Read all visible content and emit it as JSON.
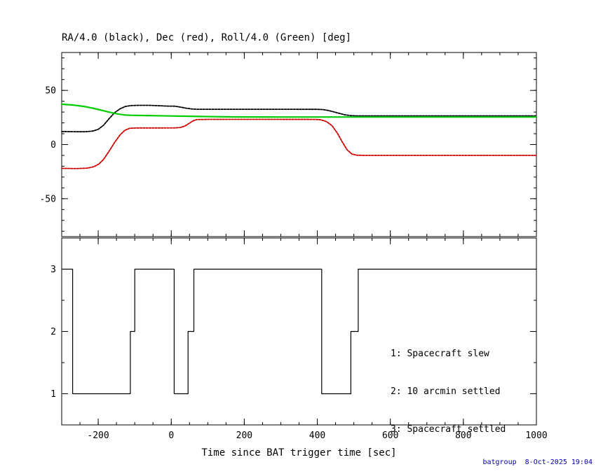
{
  "page": {
    "background": "#ffffff"
  },
  "footer": {
    "text": "batgroup  8-Oct-2025 19:04",
    "color": "#0000aa"
  },
  "chart_data": [
    {
      "type": "line",
      "title": "RA/4.0 (black), Dec (red), Roll/4.0 (Green) [deg]",
      "xlabel": "",
      "ylabel": "",
      "xlim": [
        -300,
        1000
      ],
      "ylim": [
        -85,
        85
      ],
      "xticks": [
        -200,
        0,
        200,
        400,
        600,
        800,
        1000
      ],
      "x_minor_step": 50,
      "yticks": [
        -50,
        0,
        50
      ],
      "y_minor_step": 10,
      "x_tick_labels": false,
      "grid": false,
      "series": [
        {
          "name": "RA-over-4-black",
          "color": "#000000",
          "width": 1.8,
          "style": "dotted",
          "points": [
            [
              -300,
              12
            ],
            [
              -260,
              11.8
            ],
            [
              -235,
              11.8
            ],
            [
              -215,
              12.5
            ],
            [
              -200,
              14
            ],
            [
              -185,
              18
            ],
            [
              -170,
              24
            ],
            [
              -155,
              29.5
            ],
            [
              -140,
              33
            ],
            [
              -125,
              35.2
            ],
            [
              -110,
              36
            ],
            [
              -90,
              36.2
            ],
            [
              -60,
              36.2
            ],
            [
              -30,
              35.8
            ],
            [
              -10,
              35.5
            ],
            [
              10,
              35.4
            ],
            [
              25,
              34.6
            ],
            [
              40,
              33.6
            ],
            [
              55,
              32.9
            ],
            [
              70,
              32.6
            ],
            [
              120,
              32.6
            ],
            [
              250,
              32.6
            ],
            [
              400,
              32.5
            ],
            [
              415,
              32.3
            ],
            [
              430,
              31.5
            ],
            [
              445,
              30.2
            ],
            [
              460,
              28.8
            ],
            [
              475,
              27.5
            ],
            [
              490,
              26.8
            ],
            [
              505,
              26.5
            ],
            [
              560,
              26.5
            ],
            [
              800,
              26.5
            ],
            [
              1000,
              26.5
            ]
          ]
        },
        {
          "name": "Dec-red",
          "color": "#cc0000",
          "width": 1.8,
          "style": "dotted",
          "points": [
            [
              -300,
              -22
            ],
            [
              -260,
              -22.2
            ],
            [
              -230,
              -21.8
            ],
            [
              -212,
              -20.5
            ],
            [
              -198,
              -18
            ],
            [
              -185,
              -13.5
            ],
            [
              -170,
              -6
            ],
            [
              -155,
              2
            ],
            [
              -140,
              9
            ],
            [
              -127,
              13.2
            ],
            [
              -114,
              15
            ],
            [
              -95,
              15.3
            ],
            [
              -60,
              15.3
            ],
            [
              -20,
              15.3
            ],
            [
              10,
              15.4
            ],
            [
              25,
              15.8
            ],
            [
              38,
              17.2
            ],
            [
              50,
              19.8
            ],
            [
              60,
              22
            ],
            [
              70,
              23.1
            ],
            [
              100,
              23.3
            ],
            [
              250,
              23.3
            ],
            [
              395,
              23.2
            ],
            [
              410,
              22.9
            ],
            [
              425,
              21.2
            ],
            [
              440,
              17.5
            ],
            [
              455,
              10.5
            ],
            [
              468,
              2.5
            ],
            [
              482,
              -5
            ],
            [
              495,
              -8.8
            ],
            [
              508,
              -9.8
            ],
            [
              530,
              -10
            ],
            [
              750,
              -10
            ],
            [
              1000,
              -10
            ]
          ]
        },
        {
          "name": "Roll-over-4-green",
          "color": "#00cc00",
          "width": 2.2,
          "style": "solid",
          "points": [
            [
              -300,
              37.2
            ],
            [
              -270,
              36.5
            ],
            [
              -240,
              35.2
            ],
            [
              -215,
              33.6
            ],
            [
              -195,
              32
            ],
            [
              -175,
              30.3
            ],
            [
              -158,
              29
            ],
            [
              -142,
              28
            ],
            [
              -126,
              27.3
            ],
            [
              -110,
              27
            ],
            [
              -80,
              26.8
            ],
            [
              -40,
              26.6
            ],
            [
              0,
              26.4
            ],
            [
              40,
              26.2
            ],
            [
              80,
              25.9
            ],
            [
              120,
              25.7
            ],
            [
              170,
              25.5
            ],
            [
              300,
              25.4
            ],
            [
              500,
              25.4
            ],
            [
              750,
              25.4
            ],
            [
              1000,
              25.4
            ]
          ]
        }
      ]
    },
    {
      "type": "line",
      "title": "",
      "xlabel": "Time since BAT trigger time [sec]",
      "ylabel": "",
      "xlim": [
        -300,
        1000
      ],
      "ylim": [
        0.5,
        3.5
      ],
      "xticks": [
        -200,
        0,
        200,
        400,
        600,
        800,
        1000
      ],
      "x_minor_step": 50,
      "yticks": [
        1,
        2,
        3
      ],
      "y_minor_step": 0.5,
      "x_tick_labels": true,
      "grid": false,
      "legend": [
        "1: Spacecraft slew",
        "2: 10 arcmin settled",
        "3: Spacecraft settled"
      ],
      "series": [
        {
          "name": "settled-state-step",
          "color": "#000000",
          "width": 1.2,
          "style": "solid",
          "points": [
            [
              -300,
              3
            ],
            [
              -270,
              3
            ],
            [
              -270,
              1
            ],
            [
              -112,
              1
            ],
            [
              -112,
              2
            ],
            [
              -100,
              2
            ],
            [
              -100,
              3
            ],
            [
              8,
              3
            ],
            [
              8,
              1
            ],
            [
              46,
              1
            ],
            [
              46,
              2
            ],
            [
              62,
              2
            ],
            [
              62,
              3
            ],
            [
              412,
              3
            ],
            [
              412,
              1
            ],
            [
              492,
              1
            ],
            [
              492,
              2
            ],
            [
              512,
              2
            ],
            [
              512,
              3
            ],
            [
              1000,
              3
            ]
          ]
        }
      ]
    }
  ]
}
